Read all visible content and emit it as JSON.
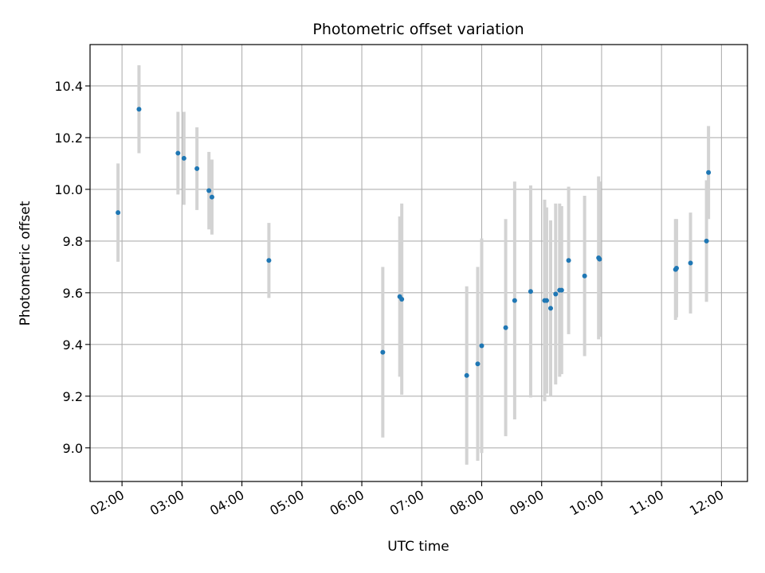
{
  "chart_data": {
    "type": "scatter",
    "title": "Photometric offset variation",
    "xlabel": "UTC time",
    "ylabel": "Photometric offset",
    "x_axis": "time",
    "xlim": [
      "01:28",
      "12:26"
    ],
    "ylim": [
      8.87,
      10.56
    ],
    "xticks": [
      "02:00",
      "03:00",
      "04:00",
      "05:00",
      "06:00",
      "07:00",
      "08:00",
      "09:00",
      "10:00",
      "11:00",
      "12:00"
    ],
    "yticks": [
      9.0,
      9.2,
      9.4,
      9.6,
      9.8,
      10.0,
      10.2,
      10.4
    ],
    "ytick_labels": [
      "9.0",
      "9.2",
      "9.4",
      "9.6",
      "9.8",
      "10.0",
      "10.2",
      "10.4"
    ],
    "grid": true,
    "colors": {
      "point": "#1f77b4",
      "errorbar": "#d3d3d3",
      "grid": "#b0b0b0"
    },
    "points": [
      {
        "time": "01:56",
        "y": 9.91,
        "err": 0.19
      },
      {
        "time": "02:17",
        "y": 10.31,
        "err": 0.17
      },
      {
        "time": "02:56",
        "y": 10.14,
        "err": 0.16
      },
      {
        "time": "03:02",
        "y": 10.12,
        "err": 0.18
      },
      {
        "time": "03:15",
        "y": 10.08,
        "err": 0.16
      },
      {
        "time": "03:27",
        "y": 9.995,
        "err": 0.15
      },
      {
        "time": "03:30",
        "y": 9.97,
        "err": 0.145
      },
      {
        "time": "04:27",
        "y": 9.725,
        "err": 0.145
      },
      {
        "time": "06:21",
        "y": 9.37,
        "err": 0.33
      },
      {
        "time": "06:38",
        "y": 9.585,
        "err": 0.31
      },
      {
        "time": "06:40",
        "y": 9.575,
        "err": 0.37
      },
      {
        "time": "07:45",
        "y": 9.28,
        "err": 0.345
      },
      {
        "time": "07:56",
        "y": 9.325,
        "err": 0.375
      },
      {
        "time": "08:00",
        "y": 9.395,
        "err": 0.415
      },
      {
        "time": "08:24",
        "y": 9.465,
        "err": 0.42
      },
      {
        "time": "08:33",
        "y": 9.57,
        "err": 0.46
      },
      {
        "time": "08:49",
        "y": 9.605,
        "err": 0.41
      },
      {
        "time": "09:03",
        "y": 9.57,
        "err": 0.39
      },
      {
        "time": "09:05",
        "y": 9.57,
        "err": 0.36
      },
      {
        "time": "09:09",
        "y": 9.54,
        "err": 0.34
      },
      {
        "time": "09:14",
        "y": 9.595,
        "err": 0.35
      },
      {
        "time": "09:18",
        "y": 9.61,
        "err": 0.335
      },
      {
        "time": "09:20",
        "y": 9.61,
        "err": 0.325
      },
      {
        "time": "09:27",
        "y": 9.725,
        "err": 0.285
      },
      {
        "time": "09:43",
        "y": 9.665,
        "err": 0.31
      },
      {
        "time": "09:57",
        "y": 9.735,
        "err": 0.315
      },
      {
        "time": "09:58",
        "y": 9.73,
        "err": 0.3
      },
      {
        "time": "11:14",
        "y": 9.69,
        "err": 0.195
      },
      {
        "time": "11:15",
        "y": 9.695,
        "err": 0.19
      },
      {
        "time": "11:29",
        "y": 9.715,
        "err": 0.195
      },
      {
        "time": "11:45",
        "y": 9.8,
        "err": 0.235
      },
      {
        "time": "11:47",
        "y": 10.065,
        "err": 0.18
      }
    ]
  }
}
